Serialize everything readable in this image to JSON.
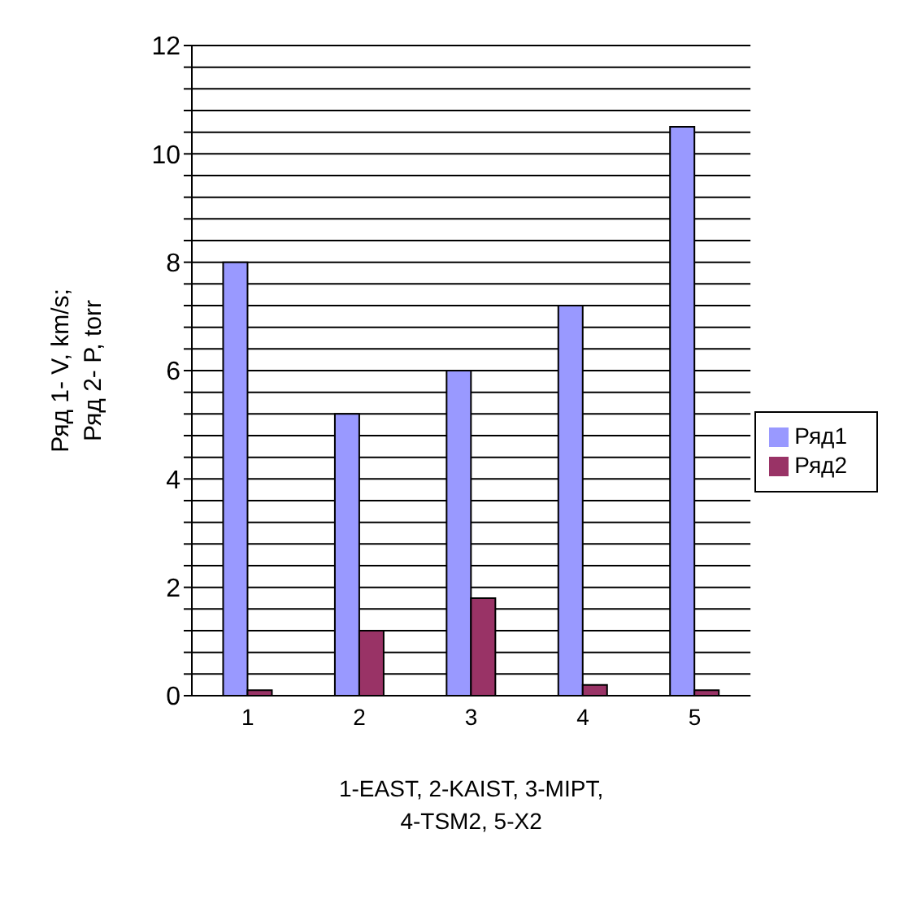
{
  "chart_data": {
    "type": "bar",
    "categories": [
      "1",
      "2",
      "3",
      "4",
      "5"
    ],
    "series": [
      {
        "name": "Ряд1",
        "color": "#9999ff",
        "values": [
          8.0,
          5.2,
          6.0,
          7.2,
          10.5
        ]
      },
      {
        "name": "Ряд2",
        "color": "#993366",
        "values": [
          0.1,
          1.2,
          1.8,
          0.2,
          0.1
        ]
      }
    ],
    "ylabel": "Ряд 1- V, km/s;\nРяд 2- P, torr",
    "xlabel": "1-EAST, 2-KAIST, 3-MIPT,\n4-TSM2, 5-X2",
    "ylim": [
      0,
      12
    ],
    "yticks": [
      0,
      {
        "value": 0.4,
        "label": null
      },
      {
        "value": 0.8,
        "label": null
      },
      {
        "value": 1.2,
        "label": null
      },
      {
        "value": 1.6,
        "label": null
      },
      2,
      {
        "value": 2.4,
        "label": null
      },
      {
        "value": 2.8,
        "label": null
      },
      {
        "value": 3.2,
        "label": null
      },
      {
        "value": 3.6,
        "label": null
      },
      4,
      {
        "value": 4.4,
        "label": null
      },
      {
        "value": 4.8,
        "label": null
      },
      {
        "value": 5.2,
        "label": null
      },
      {
        "value": 5.6,
        "label": null
      },
      6,
      {
        "value": 6.4,
        "label": null
      },
      {
        "value": 6.8,
        "label": null
      },
      {
        "value": 7.2,
        "label": null
      },
      {
        "value": 7.6,
        "label": null
      },
      8,
      {
        "value": 8.4,
        "label": null
      },
      {
        "value": 8.8,
        "label": null
      },
      {
        "value": 9.2,
        "label": null
      },
      {
        "value": 9.6,
        "label": null
      },
      10,
      {
        "value": 10.4,
        "label": null
      },
      {
        "value": 10.8,
        "label": null
      },
      {
        "value": 11.2,
        "label": null
      },
      {
        "value": 11.6,
        "label": null
      },
      12
    ],
    "grid": "y",
    "legend": "right"
  }
}
